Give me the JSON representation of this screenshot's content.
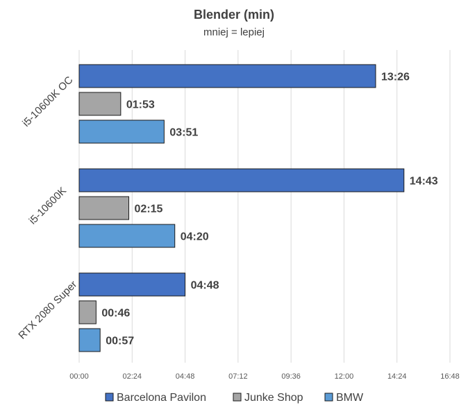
{
  "chart_data": {
    "type": "bar",
    "orientation": "horizontal",
    "title": "Blender (min)",
    "subtitle": "mniej = lepiej",
    "categories": [
      "i5-10600K OC",
      "i5-10600K",
      "RTX 2080 Super"
    ],
    "series": [
      {
        "name": "Barcelona Pavilon",
        "color": "#4472C4",
        "values": [
          "13:26",
          "14:43",
          "04:48"
        ]
      },
      {
        "name": "Junke Shop",
        "color": "#A5A5A5",
        "values": [
          "01:53",
          "02:15",
          "00:46"
        ]
      },
      {
        "name": "BMW",
        "color": "#5B9BD5",
        "values": [
          "03:51",
          "04:20",
          "00:57"
        ]
      }
    ],
    "x_ticks": [
      "00:00",
      "02:24",
      "04:48",
      "07:12",
      "09:36",
      "12:00",
      "14:24",
      "16:48"
    ],
    "xlim": [
      "00:00",
      "16:48"
    ],
    "grid": true,
    "legend_position": "bottom"
  }
}
